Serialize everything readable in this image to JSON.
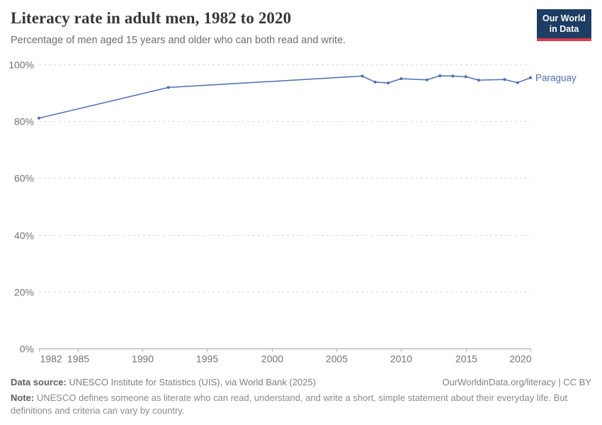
{
  "header": {
    "title": "Literacy rate in adult men, 1982 to 2020",
    "subtitle": "Percentage of men aged 15 years and older who can both read and write.",
    "logo": {
      "line1": "Our World",
      "line2": "in Data"
    }
  },
  "chart_data": {
    "type": "line",
    "title": "Literacy rate in adult men, 1982 to 2020",
    "xlabel": "",
    "ylabel": "",
    "x": [
      1982,
      1992,
      2007,
      2008,
      2009,
      2010,
      2012,
      2013,
      2014,
      2015,
      2016,
      2018,
      2019,
      2020
    ],
    "series": [
      {
        "name": "Paraguay",
        "color": "#4d6db3",
        "values": [
          81.1,
          91.9,
          95.9,
          93.8,
          93.5,
          95.0,
          94.6,
          96.0,
          95.9,
          95.7,
          94.5,
          94.7,
          93.6,
          95.3
        ]
      }
    ],
    "xlim": [
      1982,
      2020
    ],
    "ylim": [
      0,
      100
    ],
    "x_ticks": [
      1982,
      1985,
      1990,
      1995,
      2000,
      2005,
      2010,
      2015,
      2020
    ],
    "y_ticks": [
      0,
      20,
      40,
      60,
      80,
      100
    ],
    "y_tick_suffix": "%",
    "grid": "horizontal-dashed",
    "legend_position": "end-of-line"
  },
  "colors": {
    "series_blue": "#4d6db3",
    "gridline": "#d9d9d9",
    "axis": "#a5a5a5",
    "tick": "#b0b0b0",
    "tick_label": "#737373",
    "logo_navy": "#1d3d63",
    "logo_red": "#d73c4c"
  },
  "footer": {
    "datasource_label": "Data source:",
    "datasource_text": " UNESCO Institute for Statistics (UIS), via World Bank (2025)",
    "rights_text": "OurWorldinData.org/literacy | CC BY",
    "note_label": "Note:",
    "note_text": " UNESCO defines someone as literate who can read, understand, and write a short, simple statement about their everyday life. But definitions and criteria can vary by country."
  }
}
